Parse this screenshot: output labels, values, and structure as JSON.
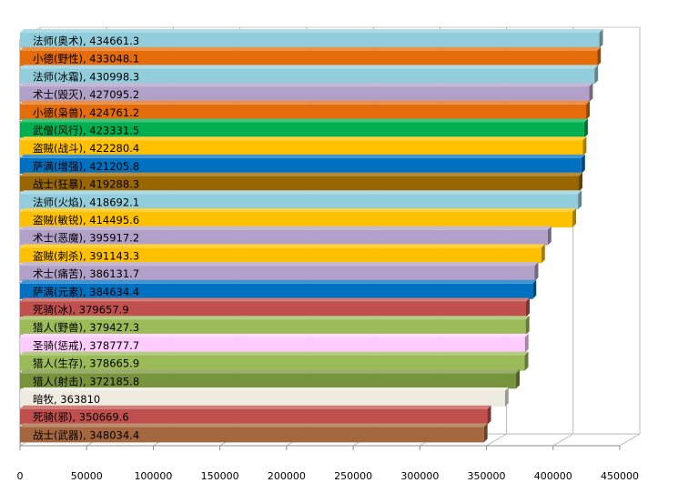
{
  "chart_data": {
    "type": "bar",
    "orientation": "horizontal",
    "style": "3d",
    "title": "",
    "xlabel": "",
    "ylabel": "",
    "xlim": [
      0,
      450000
    ],
    "ticks": [
      "0",
      "50000",
      "100000",
      "150000",
      "200000",
      "250000",
      "300000",
      "350000",
      "400000",
      "450000"
    ],
    "grid": true,
    "legend": "none",
    "bars": [
      {
        "label": "法师(奥术), 434661.3",
        "value": 434661.3,
        "color": "#92CDDC"
      },
      {
        "label": "小德(野性), 433048.1",
        "value": 433048.1,
        "color": "#E46C0A"
      },
      {
        "label": "法师(冰霜), 430998.3",
        "value": 430998.3,
        "color": "#92CDDC"
      },
      {
        "label": "术士(毁灭), 427095.2",
        "value": 427095.2,
        "color": "#B1A0C7"
      },
      {
        "label": "小德(枭兽), 424761.2",
        "value": 424761.2,
        "color": "#E46C0A"
      },
      {
        "label": "武僧(风行), 423331.5",
        "value": 423331.5,
        "color": "#00B050"
      },
      {
        "label": "盗贼(战斗), 422280.4",
        "value": 422280.4,
        "color": "#FFC000"
      },
      {
        "label": "萨满(增强), 421205.8",
        "value": 421205.8,
        "color": "#0070C0"
      },
      {
        "label": "战士(狂暴), 419288.3",
        "value": 419288.3,
        "color": "#996600"
      },
      {
        "label": "法师(火焰), 418692.1",
        "value": 418692.1,
        "color": "#92CDDC"
      },
      {
        "label": "盗贼(敏锐), 414495.6",
        "value": 414495.6,
        "color": "#FFC000"
      },
      {
        "label": "术士(恶魔), 395917.2",
        "value": 395917.2,
        "color": "#B1A0C7"
      },
      {
        "label": "盗贼(刺杀), 391143.3",
        "value": 391143.3,
        "color": "#FFC000"
      },
      {
        "label": "术士(痛苦), 386131.7",
        "value": 386131.7,
        "color": "#B1A0C7"
      },
      {
        "label": "萨满(元素), 384634.4",
        "value": 384634.4,
        "color": "#0070C0"
      },
      {
        "label": "死骑(冰), 379657.9",
        "value": 379657.9,
        "color": "#C0504D"
      },
      {
        "label": "猎人(野兽), 379427.3",
        "value": 379427.3,
        "color": "#9BBB59"
      },
      {
        "label": "圣骑(惩戒), 378777.7",
        "value": 378777.7,
        "color": "#FFCCFF"
      },
      {
        "label": "猎人(生存), 378665.9",
        "value": 378665.9,
        "color": "#9BBB59"
      },
      {
        "label": "猎人(射击), 372185.8",
        "value": 372185.8,
        "color": "#77933C"
      },
      {
        "label": "暗牧, 363810",
        "value": 363810,
        "color": "#EEECE1"
      },
      {
        "label": "死骑(邪), 350669.6",
        "value": 350669.6,
        "color": "#C0504D"
      },
      {
        "label": "战士(武器), 348034.4",
        "value": 348034.4,
        "color": "#A5673F"
      }
    ]
  }
}
